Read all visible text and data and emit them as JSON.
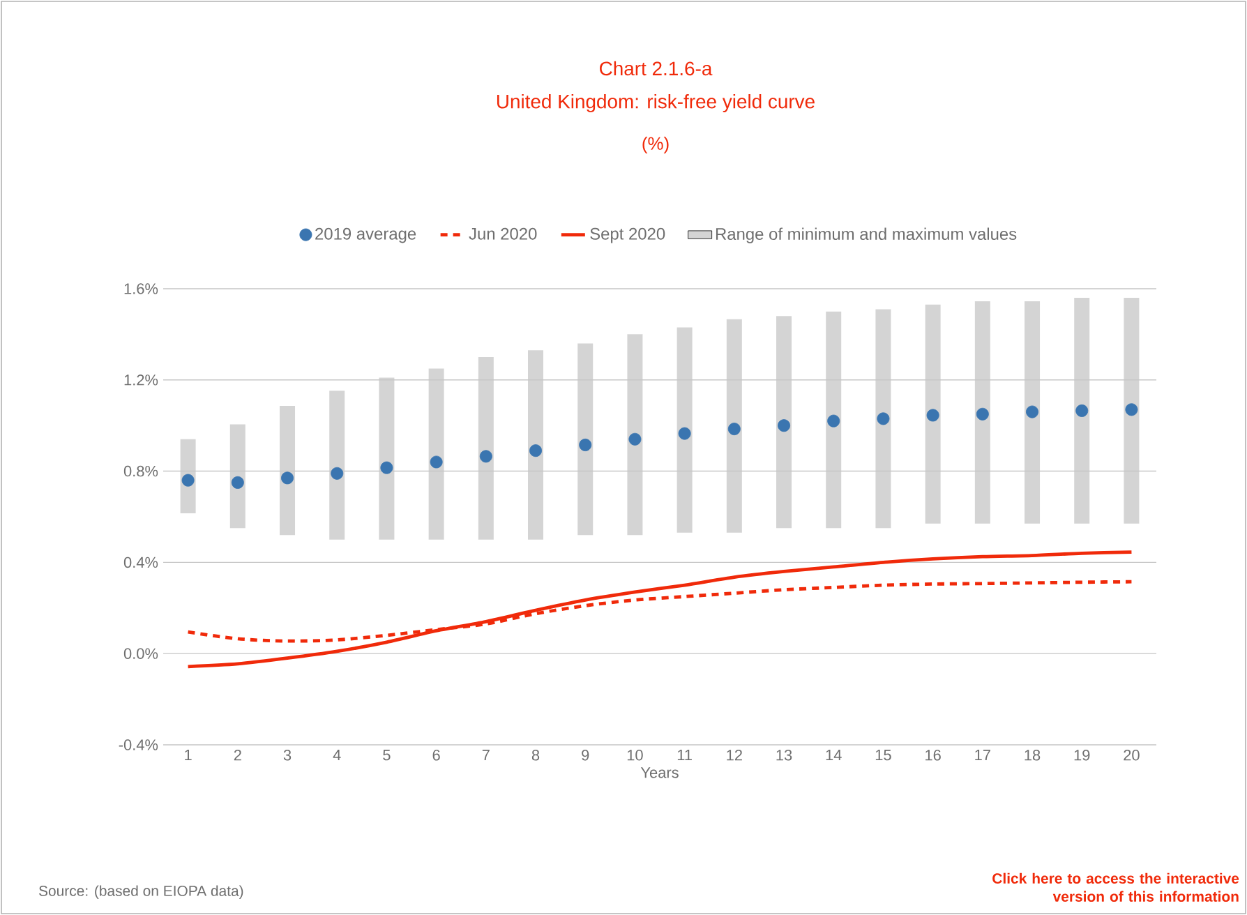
{
  "chart_data": {
    "type": "line",
    "title": "Chart 2.1.6-a",
    "subtitle": "United Kingdom: risk-free yield curve",
    "xlabel": "Years",
    "categories": [
      "1",
      "2",
      "3",
      "4",
      "5",
      "6",
      "7",
      "8",
      "9",
      "10",
      "11",
      "12",
      "13",
      "14",
      "15",
      "16",
      "17",
      "18",
      "19",
      "20"
    ],
    "series": [
      {
        "type": "scatter",
        "name": "2019 average",
        "color": "#3a75b0",
        "values": [
          0.76,
          0.75,
          0.77,
          0.79,
          0.815,
          0.84,
          0.865,
          0.89,
          0.915,
          0.94,
          0.965,
          0.985,
          1.0,
          1.02,
          1.03,
          1.045,
          1.05,
          1.06,
          1.065,
          1.07
        ]
      },
      {
        "name": "Jun 2020",
        "color": "#f02a0a",
        "line_style": "dashed",
        "values": [
          0.095,
          0.065,
          0.055,
          0.06,
          0.08,
          0.105,
          0.13,
          0.175,
          0.21,
          0.235,
          0.25,
          0.265,
          0.28,
          0.29,
          0.3,
          0.305,
          0.307,
          0.31,
          0.313,
          0.315
        ]
      },
      {
        "name": "Sept 2020",
        "color": "#f02a0a",
        "line_style": "solid",
        "values": [
          -0.057,
          -0.045,
          -0.02,
          0.01,
          0.05,
          0.1,
          0.14,
          0.19,
          0.235,
          0.27,
          0.3,
          0.335,
          0.36,
          0.38,
          0.4,
          0.415,
          0.425,
          0.43,
          0.44,
          0.445
        ]
      },
      {
        "type": "bar",
        "name": "Range of minimum and maximum values",
        "color": "#d4d4d4",
        "base": [
          0.615,
          0.55,
          0.52,
          0.5,
          0.5,
          0.5,
          0.5,
          0.5,
          0.52,
          0.52,
          0.53,
          0.53,
          0.55,
          0.55,
          0.55,
          0.57,
          0.57,
          0.57,
          0.57,
          0.57
        ],
        "values": [
          0.325,
          0.455,
          0.566,
          0.653,
          0.71,
          0.75,
          0.8,
          0.83,
          0.84,
          0.88,
          0.9,
          0.936,
          0.93,
          0.95,
          0.96,
          0.96,
          0.975,
          0.975,
          0.99,
          0.99
        ]
      }
    ],
    "ylim": [
      -0.4,
      1.6
    ],
    "yticks": [
      {
        "value": -0.4,
        "label": "-0.4%"
      },
      {
        "value": 0.0,
        "label": "0.0%"
      },
      {
        "value": 0.4,
        "label": "0.4%"
      },
      {
        "value": 0.8,
        "label": "0.8%"
      },
      {
        "value": 1.2,
        "label": "1.2%"
      },
      {
        "value": 1.6,
        "label": "1.6%"
      }
    ],
    "grid": "y",
    "legend": "top",
    "annotations": [
      "(%)",
      "Source: (based on EIOPA data)",
      "Click here to access the interactive version of this information"
    ]
  }
}
